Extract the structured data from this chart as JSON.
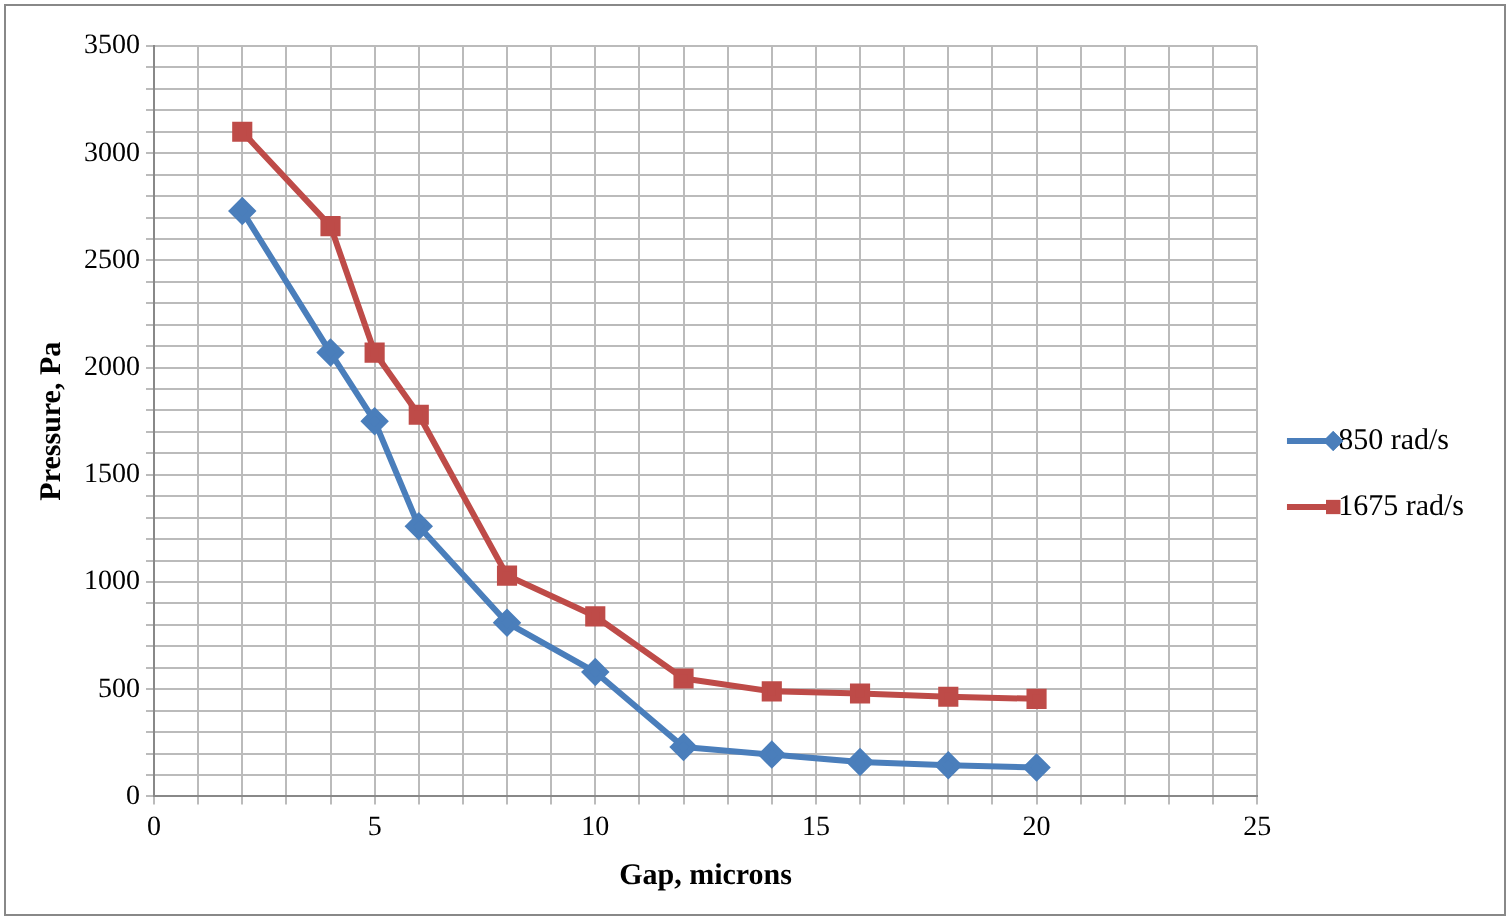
{
  "chart_data": {
    "type": "line",
    "xlabel": "Gap, microns",
    "ylabel": "Pressure, Pa",
    "xlim": [
      0,
      25
    ],
    "xticks": [
      0,
      {
        "value": 1,
        "label": null
      },
      {
        "value": 2,
        "label": null
      },
      {
        "value": 3,
        "label": null
      },
      {
        "value": 4,
        "label": null
      },
      5,
      {
        "value": 6,
        "label": null
      },
      {
        "value": 7,
        "label": null
      },
      {
        "value": 8,
        "label": null
      },
      {
        "value": 9,
        "label": null
      },
      10,
      {
        "value": 11,
        "label": null
      },
      {
        "value": 12,
        "label": null
      },
      {
        "value": 13,
        "label": null
      },
      {
        "value": 14,
        "label": null
      },
      15,
      {
        "value": 16,
        "label": null
      },
      {
        "value": 17,
        "label": null
      },
      {
        "value": 18,
        "label": null
      },
      {
        "value": 19,
        "label": null
      },
      20,
      {
        "value": 21,
        "label": null
      },
      {
        "value": 22,
        "label": null
      },
      {
        "value": 23,
        "label": null
      },
      {
        "value": 24,
        "label": null
      },
      25
    ],
    "ylim": [
      0,
      3500
    ],
    "yticks": [
      0,
      {
        "value": 100,
        "label": null
      },
      {
        "value": 200,
        "label": null
      },
      {
        "value": 300,
        "label": null
      },
      {
        "value": 400,
        "label": null
      },
      500,
      {
        "value": 600,
        "label": null
      },
      {
        "value": 700,
        "label": null
      },
      {
        "value": 800,
        "label": null
      },
      {
        "value": 900,
        "label": null
      },
      1000,
      {
        "value": 1100,
        "label": null
      },
      {
        "value": 1200,
        "label": null
      },
      {
        "value": 1300,
        "label": null
      },
      {
        "value": 1400,
        "label": null
      },
      1500,
      {
        "value": 1600,
        "label": null
      },
      {
        "value": 1700,
        "label": null
      },
      {
        "value": 1800,
        "label": null
      },
      {
        "value": 1900,
        "label": null
      },
      2000,
      {
        "value": 2100,
        "label": null
      },
      {
        "value": 2200,
        "label": null
      },
      {
        "value": 2300,
        "label": null
      },
      {
        "value": 2400,
        "label": null
      },
      2500,
      {
        "value": 2600,
        "label": null
      },
      {
        "value": 2700,
        "label": null
      },
      {
        "value": 2800,
        "label": null
      },
      {
        "value": 2900,
        "label": null
      },
      3000,
      {
        "value": 3100,
        "label": null
      },
      {
        "value": 3200,
        "label": null
      },
      {
        "value": 3300,
        "label": null
      },
      {
        "value": 3400,
        "label": null
      },
      3500
    ],
    "grid": true,
    "legend": "right",
    "line_style": "solid",
    "x": [
      2,
      4,
      5,
      6,
      8,
      10,
      12,
      14,
      16,
      18,
      20
    ],
    "series": [
      {
        "name": "850 rad/s",
        "color": "#4a7ebb",
        "marker": "diamond",
        "values": [
          2730,
          2070,
          1750,
          1260,
          810,
          580,
          230,
          195,
          160,
          145,
          135
        ]
      },
      {
        "name": "1675 rad/s",
        "color": "#be4b48",
        "marker": "square",
        "values": [
          3100,
          2660,
          2070,
          1780,
          1030,
          840,
          550,
          490,
          480,
          465,
          455
        ]
      }
    ]
  }
}
